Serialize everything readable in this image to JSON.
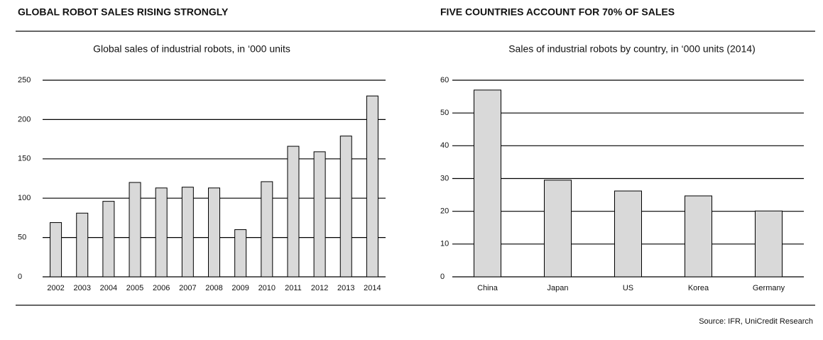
{
  "chart_data": [
    {
      "type": "bar",
      "heading": "GLOBAL ROBOT SALES RISING STRONGLY",
      "title": "Global sales of industrial robots, in ‘000 units",
      "categories": [
        "2002",
        "2003",
        "2004",
        "2005",
        "2006",
        "2007",
        "2008",
        "2009",
        "2010",
        "2011",
        "2012",
        "2013",
        "2014"
      ],
      "values": [
        69,
        81,
        96,
        120,
        113,
        114,
        113,
        60,
        121,
        166,
        159,
        179,
        230
      ],
      "color": "#d9d9d9",
      "ylim": [
        0,
        250
      ],
      "yticks": [
        0,
        50,
        100,
        150,
        200,
        250
      ],
      "grid": true
    },
    {
      "type": "bar",
      "heading": "FIVE COUNTRIES ACCOUNT FOR 70% OF SALES",
      "title": "Sales of industrial robots by country, in ‘000 units (2014)",
      "categories": [
        "China",
        "Japan",
        "US",
        "Korea",
        "Germany"
      ],
      "values": [
        57,
        29.5,
        26.2,
        24.7,
        20.1
      ],
      "color": "#d9d9d9",
      "ylim": [
        0,
        60
      ],
      "yticks": [
        0,
        10,
        20,
        30,
        40,
        50,
        60
      ],
      "grid": true
    }
  ],
  "source": "Source: IFR, UniCredit Research"
}
